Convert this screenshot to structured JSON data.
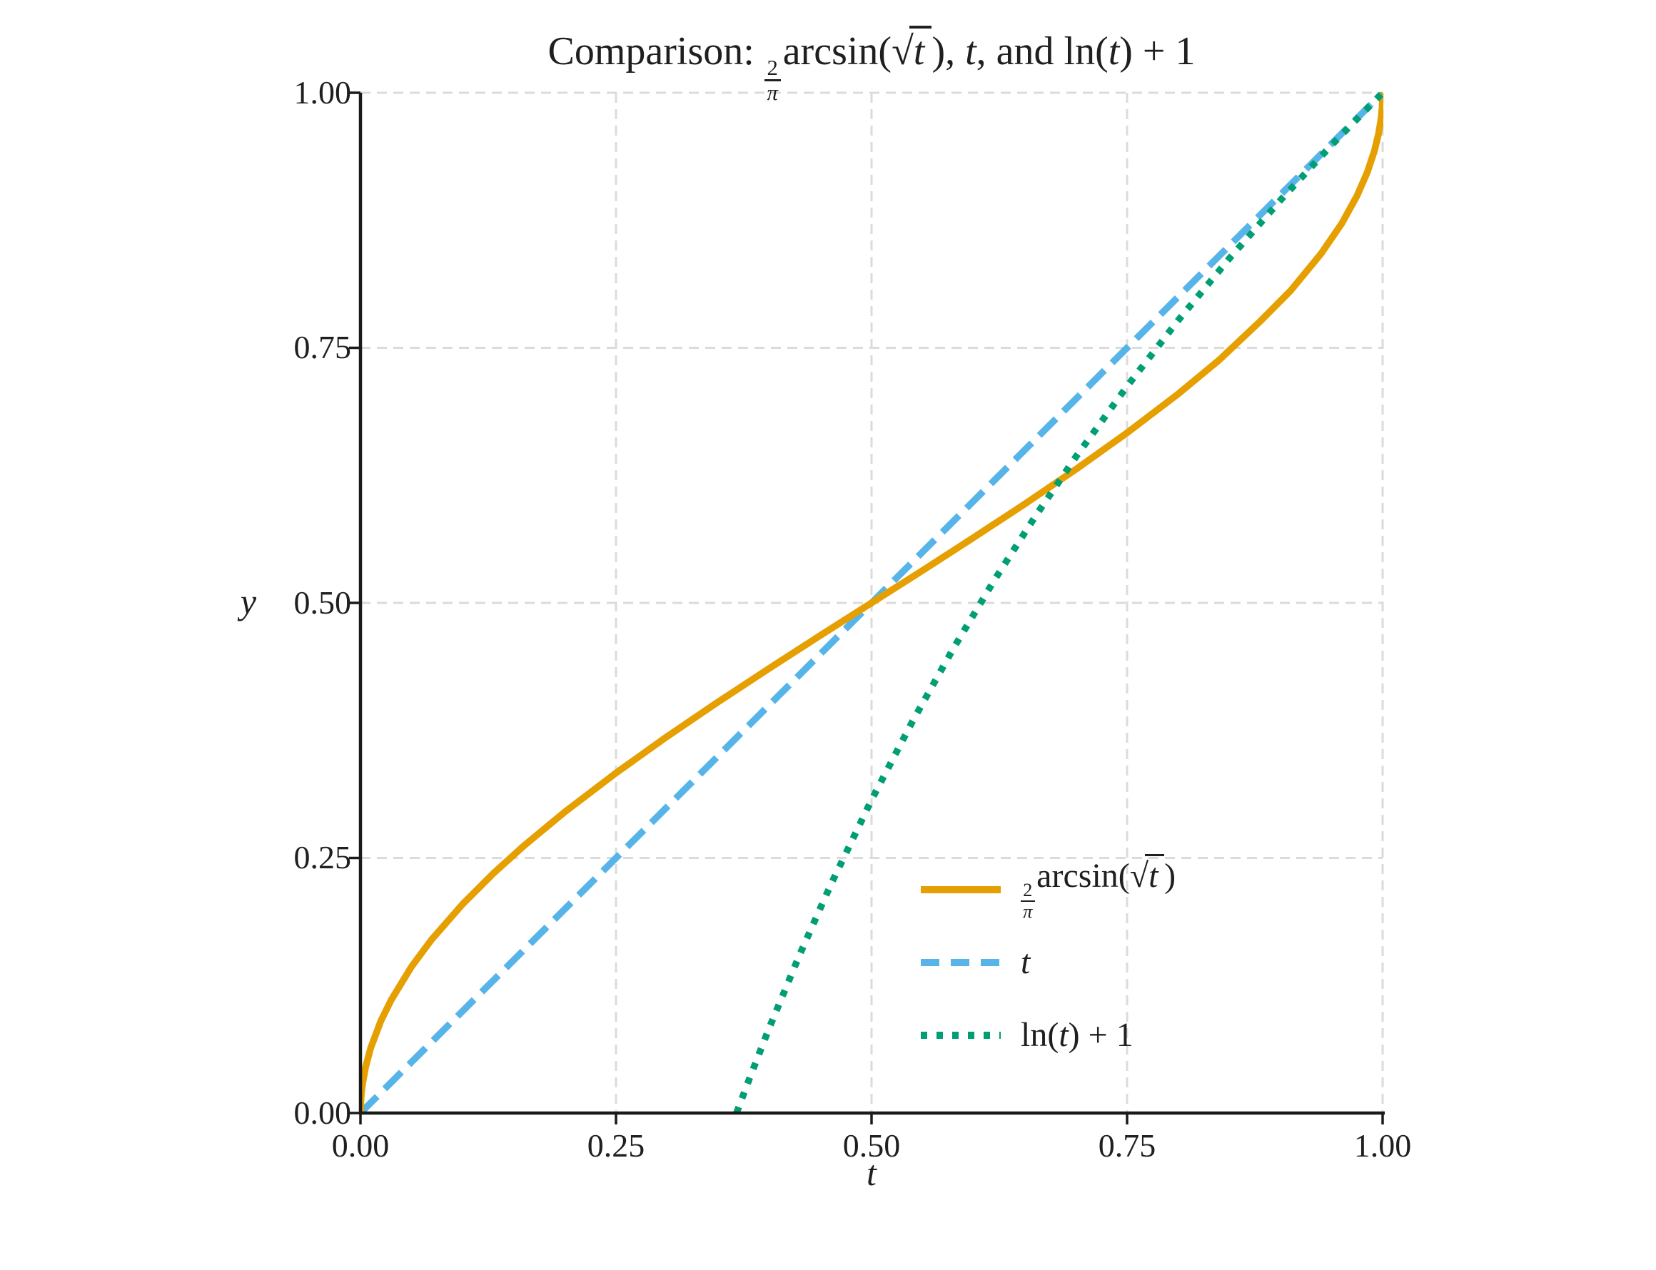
{
  "figure": {
    "background": "#FFFFFF",
    "text_color": "#1F1F1F",
    "grid_color": "#DBDBDB",
    "spine_color": "#1A1A1A"
  },
  "title": {
    "text": "Comparison: (2/π) arcsin(√t), t, and ln(t) + 1",
    "tokens": [
      {
        "k": "text",
        "v": "Comparison: "
      },
      {
        "k": "frac",
        "num": "2",
        "den": "π"
      },
      {
        "k": "text",
        "v": "arcsin("
      },
      {
        "k": "sqrt",
        "v": "t"
      },
      {
        "k": "text",
        "v": "), "
      },
      {
        "k": "it",
        "v": "t"
      },
      {
        "k": "text",
        "v": ", and ln("
      },
      {
        "k": "it",
        "v": "t"
      },
      {
        "k": "text",
        "v": ") + 1"
      }
    ]
  },
  "legend": {
    "position": "lower right",
    "entries": [
      {
        "name": "2/π arcsin(√t)",
        "tokens": [
          {
            "k": "frac",
            "num": "2",
            "den": "π"
          },
          {
            "k": "text",
            "v": "arcsin("
          },
          {
            "k": "sqrt",
            "v": "t"
          },
          {
            "k": "text",
            "v": ")"
          }
        ]
      },
      {
        "name": "t",
        "tokens": [
          {
            "k": "it",
            "v": "t"
          }
        ]
      },
      {
        "name": "ln(t) + 1",
        "tokens": [
          {
            "k": "text",
            "v": "ln("
          },
          {
            "k": "it",
            "v": "t"
          },
          {
            "k": "text",
            "v": ") + 1"
          }
        ]
      }
    ]
  },
  "chart_data": {
    "type": "line",
    "title": "Comparison: (2/π) arcsin(√t), t, and ln(t) + 1",
    "xlabel": "t",
    "ylabel": "y",
    "xlim": [
      0,
      1
    ],
    "ylim": [
      0,
      1
    ],
    "grid": true,
    "legend_position": "lower right",
    "x_ticks": [
      0,
      0.25,
      0.5,
      0.75,
      1
    ],
    "x_tick_labels": [
      "0.00",
      "0.25",
      "0.50",
      "0.75",
      "1.00"
    ],
    "y_ticks": [
      0,
      0.25,
      0.5,
      0.75,
      1
    ],
    "y_tick_labels": [
      "0.00",
      "0.25",
      "0.50",
      "0.75",
      "1.00"
    ],
    "series": [
      {
        "id": "arcsin-curve",
        "name": "2/π arcsin(√t)",
        "color": "#E69F00",
        "style": "solid",
        "z": 2,
        "x": [
          0,
          0.0005,
          0.001,
          0.002,
          0.005,
          0.01,
          0.02,
          0.03,
          0.05,
          0.07,
          0.1,
          0.13,
          0.16,
          0.2,
          0.25,
          0.3,
          0.35,
          0.4,
          0.45,
          0.5,
          0.55,
          0.6,
          0.65,
          0.7,
          0.75,
          0.8,
          0.84,
          0.88,
          0.91,
          0.94,
          0.96,
          0.975,
          0.985,
          0.992,
          0.996,
          0.998,
          0.999,
          0.9995,
          1
        ],
        "y": [
          0,
          0.0142,
          0.0201,
          0.0285,
          0.045,
          0.0638,
          0.0903,
          0.1108,
          0.1436,
          0.1705,
          0.2048,
          0.2349,
          0.262,
          0.2952,
          0.3333,
          0.369,
          0.403,
          0.4359,
          0.4682,
          0.5,
          0.5318,
          0.5641,
          0.597,
          0.631,
          0.6667,
          0.7048,
          0.738,
          0.7758,
          0.806,
          0.8426,
          0.8718,
          0.8991,
          0.922,
          0.943,
          0.9598,
          0.9715,
          0.9799,
          0.9858,
          1
        ],
        "formula": "y = (2/π)·arcsin(√t)"
      },
      {
        "id": "identity-line",
        "name": "t",
        "color": "#56B4E9",
        "style": "dashed",
        "z": 1,
        "x": [
          0,
          1
        ],
        "y": [
          0,
          1
        ],
        "formula": "y = t"
      },
      {
        "id": "log-curve",
        "name": "ln(t) + 1",
        "color": "#009E73",
        "style": "dotted",
        "z": 3,
        "x": [
          0.3679,
          0.38,
          0.4,
          0.43,
          0.46,
          0.5,
          0.54,
          0.58,
          0.62,
          0.66,
          0.7,
          0.75,
          0.8,
          0.85,
          0.9,
          0.95,
          1
        ],
        "y": [
          0,
          0.0324,
          0.0837,
          0.156,
          0.2235,
          0.3069,
          0.3838,
          0.4553,
          0.522,
          0.5845,
          0.6433,
          0.7123,
          0.7769,
          0.8375,
          0.8946,
          0.9487,
          1
        ],
        "formula": "y = ln(t) + 1 (clipped at y = 0)"
      }
    ]
  }
}
